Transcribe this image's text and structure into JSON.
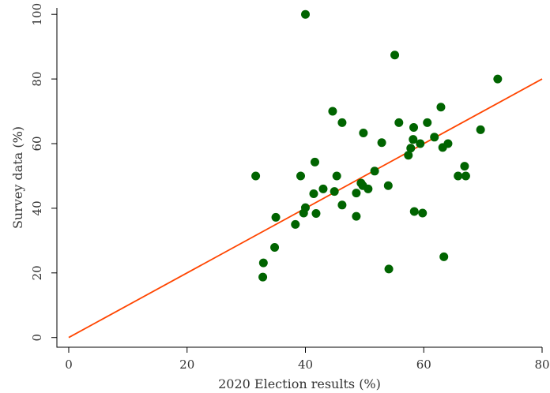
{
  "chart_data": {
    "type": "scatter",
    "title": "",
    "xlabel": "2020 Election results (%)",
    "ylabel": "Survey data (%)",
    "xlim": [
      -2,
      80
    ],
    "ylim": [
      -3,
      102
    ],
    "xticks": [
      0,
      20,
      40,
      60,
      80
    ],
    "yticks": [
      0,
      20,
      40,
      60,
      80,
      100
    ],
    "grid": false,
    "colors": {
      "points": "#006400",
      "line": "#ff4500",
      "axes": "#000000"
    },
    "reference_line": {
      "x": [
        0,
        80
      ],
      "y": [
        0,
        80
      ]
    },
    "points": [
      [
        31.6,
        50
      ],
      [
        32.8,
        18.7
      ],
      [
        32.9,
        23.1
      ],
      [
        34.8,
        27.9
      ],
      [
        35,
        37.2
      ],
      [
        38.3,
        35
      ],
      [
        39.2,
        50
      ],
      [
        39.7,
        38.5
      ],
      [
        40,
        100
      ],
      [
        40,
        40.2
      ],
      [
        41.4,
        44.5
      ],
      [
        41.6,
        54.3
      ],
      [
        41.8,
        38.4
      ],
      [
        43,
        46
      ],
      [
        44.6,
        70
      ],
      [
        44.9,
        45.2
      ],
      [
        45.3,
        50
      ],
      [
        46.2,
        66.5
      ],
      [
        46.2,
        41
      ],
      [
        48.6,
        37.5
      ],
      [
        48.6,
        44.7
      ],
      [
        49.4,
        47.8
      ],
      [
        49.7,
        47
      ],
      [
        49.8,
        63.3
      ],
      [
        50.6,
        46
      ],
      [
        51.7,
        51.5
      ],
      [
        52.9,
        60.3
      ],
      [
        54,
        47
      ],
      [
        54.1,
        21.2
      ],
      [
        55.1,
        87.4
      ],
      [
        55.8,
        66.5
      ],
      [
        57.4,
        56.4
      ],
      [
        57.8,
        58.6
      ],
      [
        58.2,
        61.3
      ],
      [
        58.3,
        65
      ],
      [
        58.4,
        39
      ],
      [
        59.4,
        60
      ],
      [
        59.8,
        38.5
      ],
      [
        60.6,
        66.5
      ],
      [
        61.8,
        62
      ],
      [
        62.9,
        71.3
      ],
      [
        63.2,
        58.8
      ],
      [
        63.4,
        25
      ],
      [
        64.1,
        60
      ],
      [
        65.8,
        50
      ],
      [
        66.9,
        53
      ],
      [
        67.1,
        50
      ],
      [
        69.6,
        64.3
      ],
      [
        72.5,
        80
      ]
    ]
  }
}
